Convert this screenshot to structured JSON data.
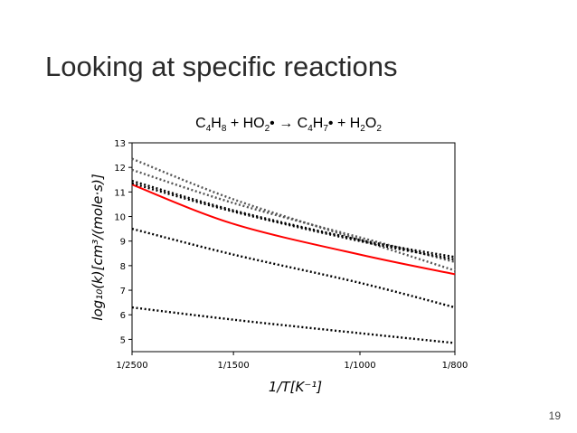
{
  "slide": {
    "title": "Looking at specific reactions",
    "page_number": "19"
  },
  "chart_data": {
    "type": "line",
    "title_parts": [
      {
        "t": "C",
        "s": false
      },
      {
        "t": "4",
        "s": true
      },
      {
        "t": "H",
        "s": false
      },
      {
        "t": "8",
        "s": true
      },
      {
        "t": " + HO",
        "s": false
      },
      {
        "t": "2",
        "s": true
      },
      {
        "t": "• → C",
        "s": false
      },
      {
        "t": "4",
        "s": true
      },
      {
        "t": "H",
        "s": false
      },
      {
        "t": "7",
        "s": true
      },
      {
        "t": "• + H",
        "s": false
      },
      {
        "t": "2",
        "s": true
      },
      {
        "t": "O",
        "s": false
      },
      {
        "t": "2",
        "s": true
      }
    ],
    "xlabel": "1/T[K⁻¹]",
    "ylabel": "log₁₀(k)[cm³/(mole·s)]",
    "xlim": [
      0.0004,
      0.00125
    ],
    "ylim": [
      4.5,
      13
    ],
    "xticks": [
      {
        "value": 0.0004,
        "label": "1/2500"
      },
      {
        "value": 0.000667,
        "label": "1/1500"
      },
      {
        "value": 0.001,
        "label": "1/1000"
      },
      {
        "value": 0.00125,
        "label": "1/800"
      }
    ],
    "yticks": [
      5,
      6,
      7,
      8,
      9,
      10,
      11,
      12,
      13
    ],
    "grid": false,
    "series": [
      {
        "color": "#ff0000",
        "style": "solid",
        "x": [
          0.0004,
          0.000667,
          0.001,
          0.00125
        ],
        "y": [
          11.3,
          9.7,
          8.45,
          7.65
        ]
      },
      {
        "color": "#555555",
        "style": "dotted",
        "x": [
          0.0004,
          0.000667,
          0.001,
          0.00125
        ],
        "y": [
          12.35,
          10.7,
          9.05,
          7.8
        ]
      },
      {
        "color": "#555555",
        "style": "dotted",
        "x": [
          0.0004,
          0.000667,
          0.001,
          0.00125
        ],
        "y": [
          11.9,
          10.55,
          9.15,
          8.15
        ]
      },
      {
        "color": "#000000",
        "style": "dotted",
        "x": [
          0.0004,
          0.000667,
          0.001,
          0.00125
        ],
        "y": [
          11.45,
          10.25,
          9.05,
          8.35
        ]
      },
      {
        "color": "#000000",
        "style": "dotted",
        "x": [
          0.0004,
          0.000667,
          0.001,
          0.00125
        ],
        "y": [
          11.35,
          10.2,
          9.0,
          8.25
        ]
      },
      {
        "color": "#000000",
        "style": "dotted",
        "x": [
          0.0004,
          0.000667,
          0.001,
          0.00125
        ],
        "y": [
          9.5,
          8.45,
          7.3,
          6.3
        ]
      },
      {
        "color": "#000000",
        "style": "dotted",
        "x": [
          0.0004,
          0.000667,
          0.001,
          0.00125
        ],
        "y": [
          6.3,
          5.8,
          5.25,
          4.85
        ]
      }
    ]
  }
}
